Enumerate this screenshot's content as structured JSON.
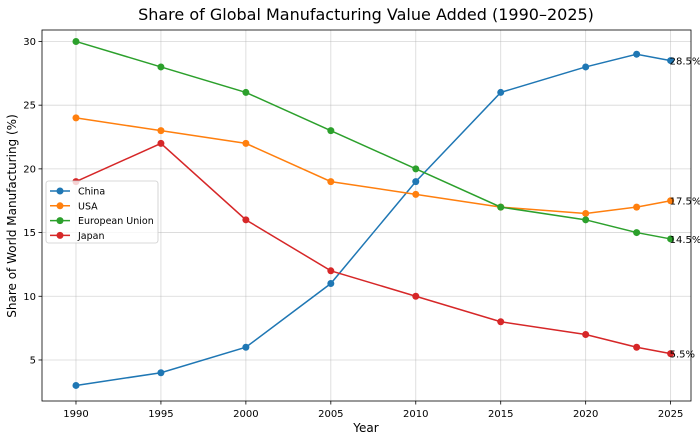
{
  "chart_data": {
    "type": "line",
    "title": "Share of Global Manufacturing Value Added (1990–2025)",
    "xlabel": "Year",
    "ylabel": "Share of World Manufacturing (%)",
    "x": [
      1990,
      1995,
      2000,
      2005,
      2010,
      2015,
      2020,
      2023,
      2025
    ],
    "xticks": [
      1990,
      1995,
      2000,
      2005,
      2010,
      2015,
      2020,
      2025
    ],
    "xtick_labels": [
      "1990",
      "1995",
      "2000",
      "2005",
      "2010",
      "2015",
      "2020",
      "2025"
    ],
    "yticks": [
      5,
      10,
      15,
      20,
      25,
      30
    ],
    "ytick_labels": [
      "5",
      "10",
      "15",
      "20",
      "25",
      "30"
    ],
    "xlim": [
      1988.0,
      2026.2
    ],
    "ylim": [
      1.78,
      30.9
    ],
    "grid": true,
    "legend_position": "center-left",
    "series": [
      {
        "name": "China",
        "color": "#1f77b4",
        "values": [
          3,
          4,
          6,
          11,
          19,
          26,
          28,
          29,
          28.5
        ],
        "end_label": "28.5%"
      },
      {
        "name": "USA",
        "color": "#ff7f0e",
        "values": [
          24,
          23,
          22,
          19,
          18,
          17,
          16.5,
          17,
          17.5
        ],
        "end_label": "17.5%"
      },
      {
        "name": "European Union",
        "color": "#2ca02c",
        "values": [
          30,
          28,
          26,
          23,
          20,
          17,
          16,
          15,
          14.5
        ],
        "end_label": "14.5%"
      },
      {
        "name": "Japan",
        "color": "#d62728",
        "values": [
          19,
          22,
          16,
          12,
          10,
          8,
          7,
          6,
          5.5
        ],
        "end_label": "5.5%"
      }
    ]
  }
}
